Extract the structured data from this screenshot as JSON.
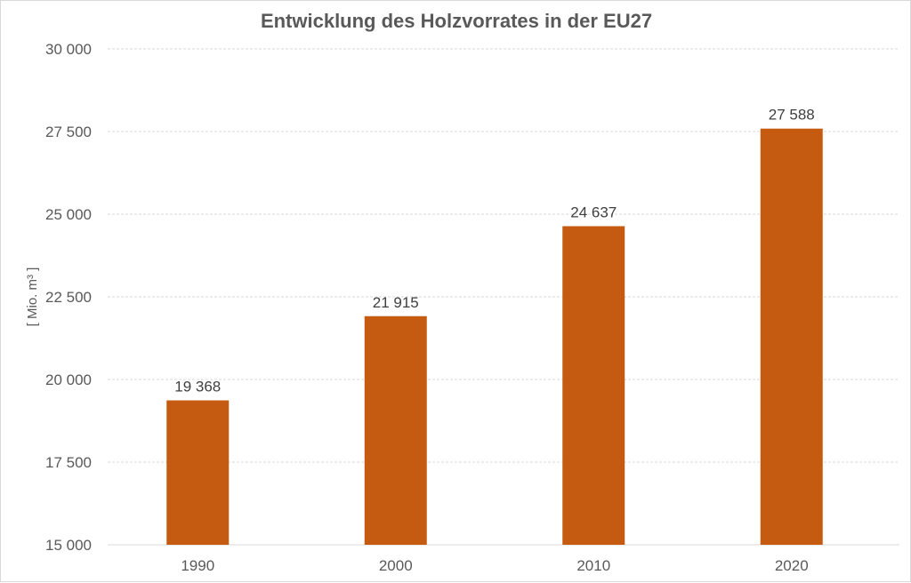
{
  "chart_data": {
    "type": "bar",
    "title": "Entwicklung des Holzvorrates in der EU27",
    "xlabel": "",
    "ylabel": "[ Mio. m³ ]",
    "categories": [
      "1990",
      "2000",
      "2010",
      "2020"
    ],
    "values": [
      19368,
      21915,
      24637,
      27588
    ],
    "value_labels": [
      "19 368",
      "21 915",
      "24 637",
      "27 588"
    ],
    "ylim": [
      15000,
      30000
    ],
    "yticks": [
      15000,
      17500,
      20000,
      22500,
      25000,
      27500,
      30000
    ],
    "ytick_labels": [
      "15 000",
      "17 500",
      "20 000",
      "22 500",
      "25 000",
      "27 500",
      "30 000"
    ],
    "grid": true,
    "legend": "none",
    "colors": {
      "bar": "#C55A11",
      "grid": "#D9D9D9",
      "text": "#595959"
    }
  }
}
